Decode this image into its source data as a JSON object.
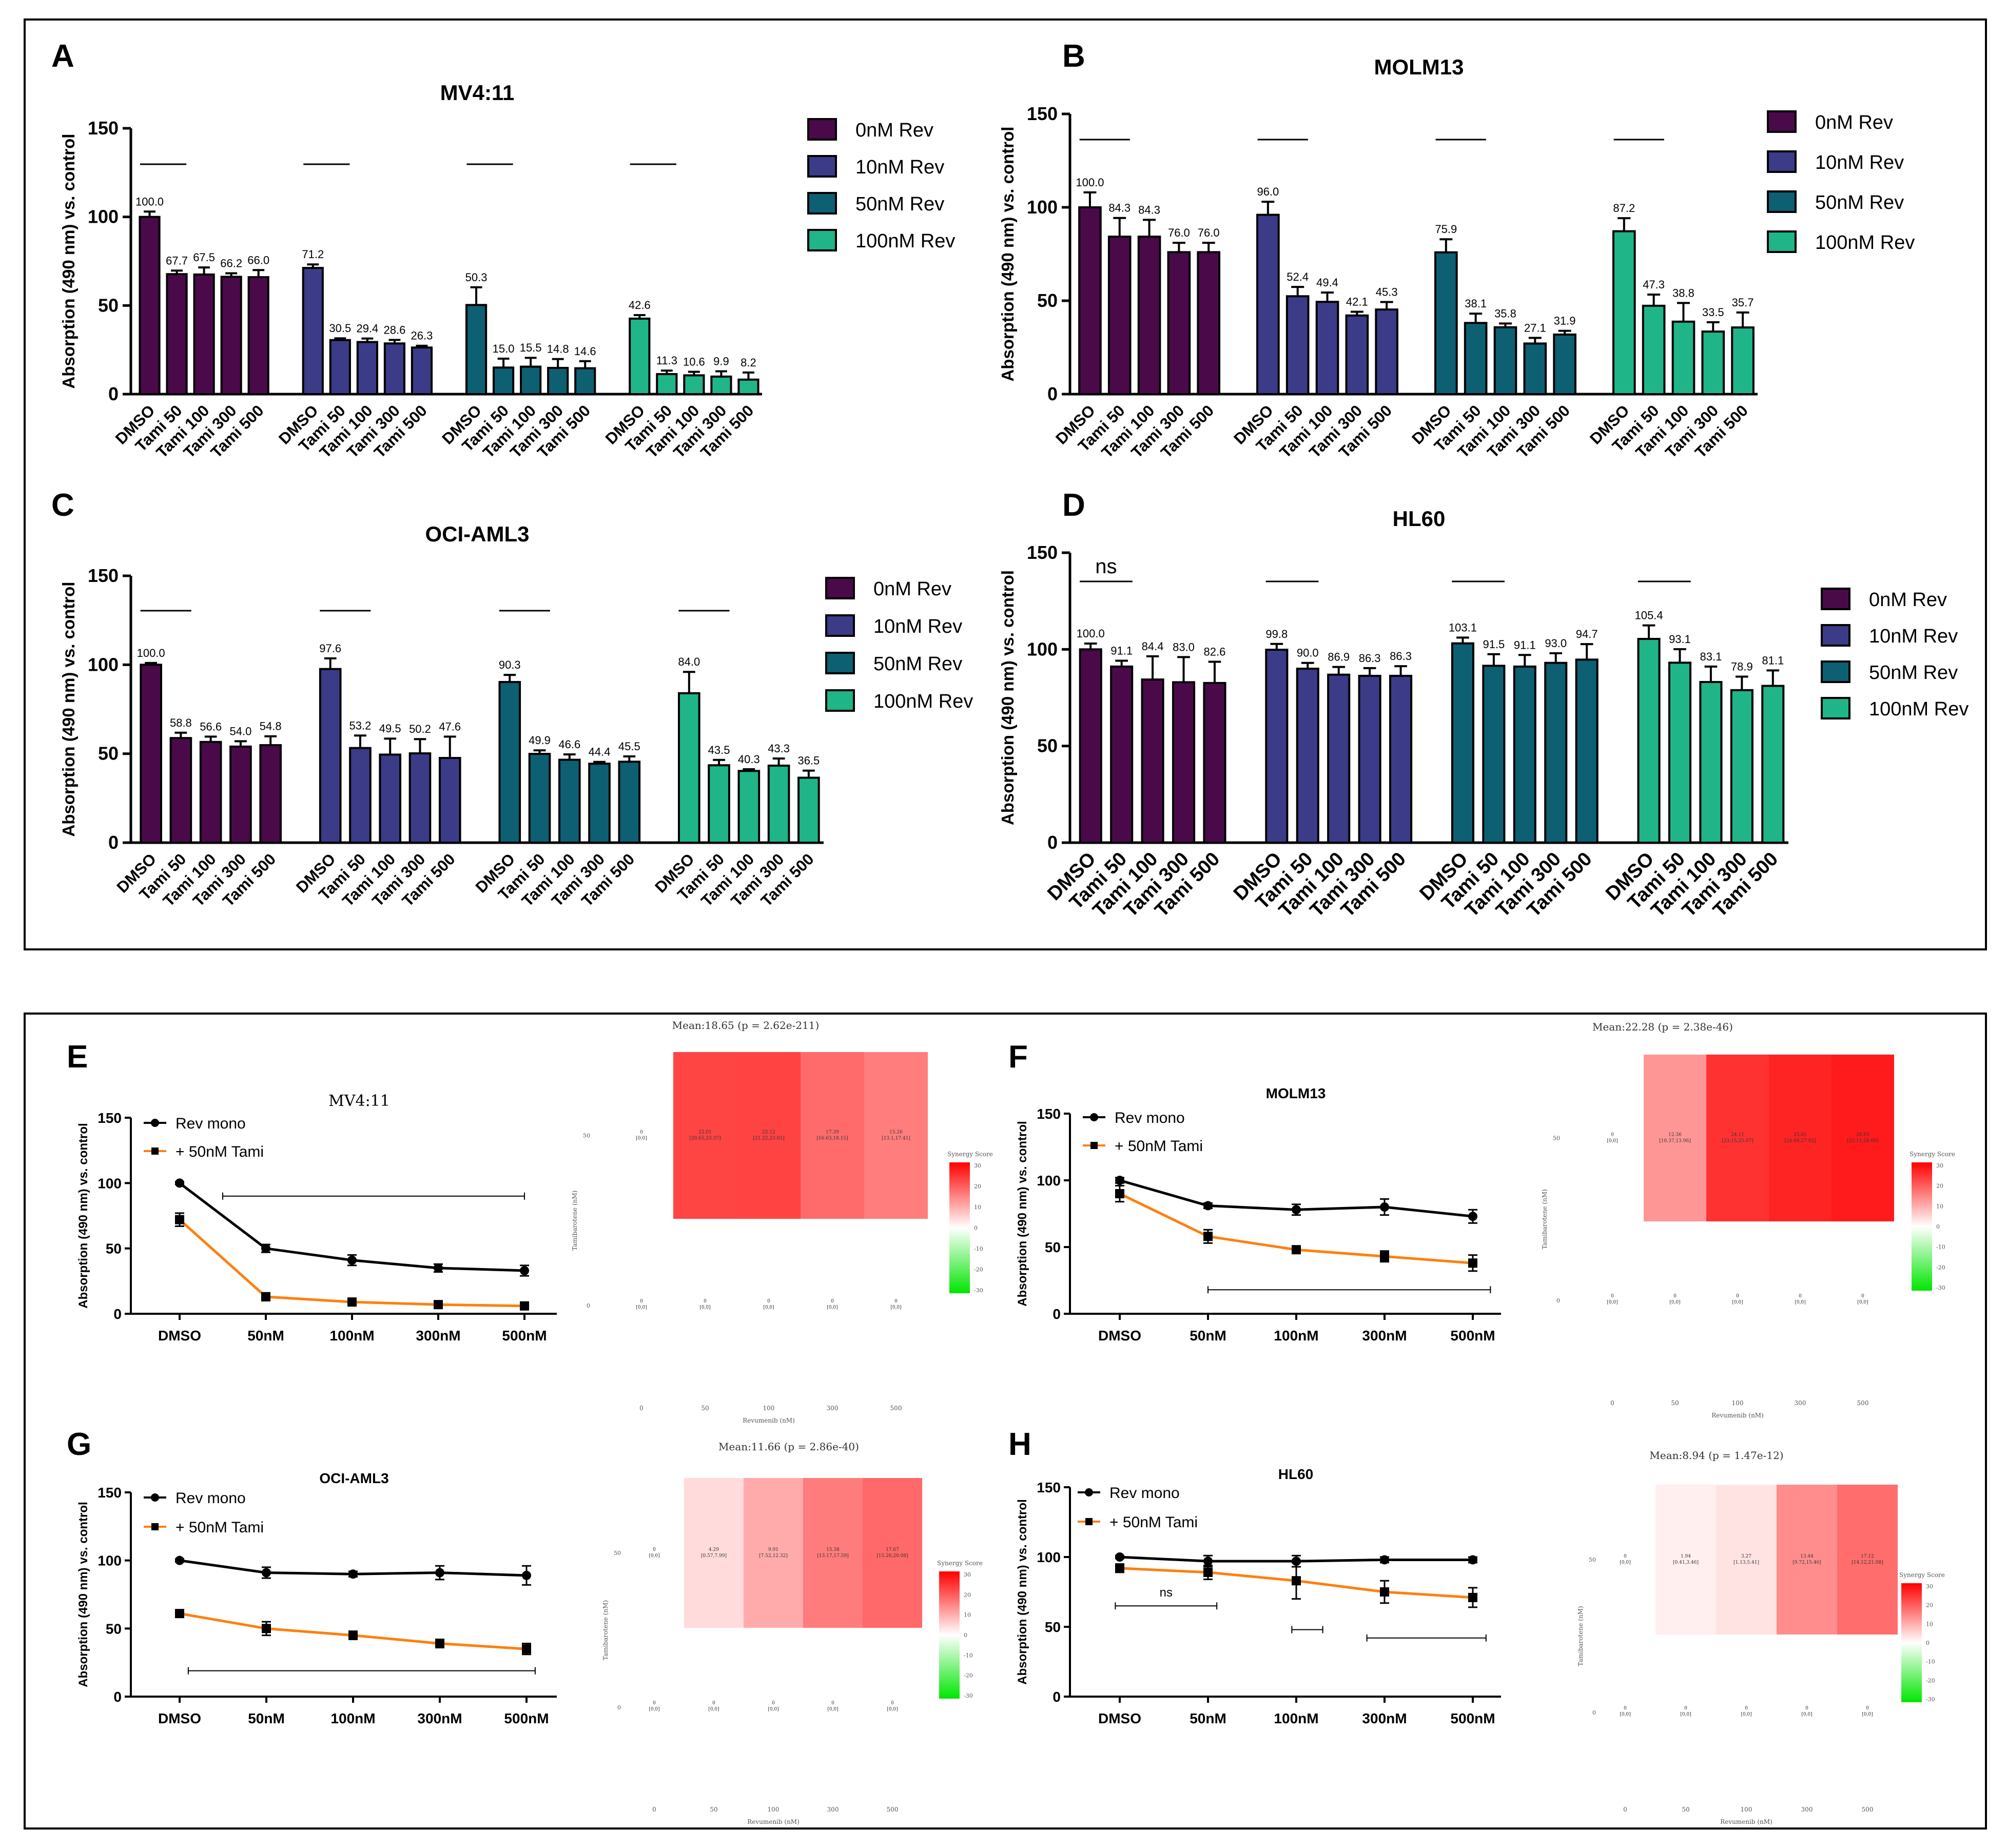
{
  "figure": {
    "panel_letters": [
      "A",
      "B",
      "C",
      "D",
      "E",
      "F",
      "G",
      "H"
    ],
    "colors": {
      "rev0": "#4a0a4a",
      "rev10": "#3b3b88",
      "rev50": "#0d5f72",
      "rev100": "#1fb589",
      "mono": "#000000",
      "tami": "#ff7f0e",
      "heat_high": "#ff0000",
      "heat_low": "#00e600"
    }
  },
  "chart_data": [
    {
      "id": "A",
      "type": "bar",
      "title": "MV4:11",
      "ylabel": "Absorption (490 nm) vs. control",
      "ylim": [
        0,
        150
      ],
      "yticks": [
        0,
        50,
        100,
        150
      ],
      "categories": [
        "DMSO",
        "Tami 50",
        "Tami 100",
        "Tami 300",
        "Tami 500"
      ],
      "legend": [
        "0nM Rev",
        "10nM Rev",
        "50nM Rev",
        "100nM Rev"
      ],
      "groups": [
        {
          "name": "0nM Rev",
          "values": [
            100.0,
            67.7,
            67.5,
            66.2,
            66.0
          ],
          "labels": [
            "100.0",
            "67.7",
            "67.5",
            "66.2",
            "66.0"
          ],
          "errors": [
            3,
            2,
            4,
            2,
            4
          ]
        },
        {
          "name": "10nM Rev",
          "values": [
            71.2,
            30.5,
            29.4,
            28.6,
            26.3
          ],
          "labels": [
            "71.2",
            "30.5",
            "29.4",
            "28.6",
            "26.3"
          ],
          "errors": [
            2,
            1,
            2,
            2,
            1
          ]
        },
        {
          "name": "50nM Rev",
          "values": [
            50.3,
            15.0,
            15.5,
            14.8,
            14.6
          ],
          "labels": [
            "50.3",
            "15.0",
            "15.5",
            "14.8",
            "14.6"
          ],
          "errors": [
            10,
            5,
            5,
            5,
            4
          ]
        },
        {
          "name": "100nM Rev",
          "values": [
            42.6,
            11.3,
            10.6,
            9.9,
            8.2
          ],
          "labels": [
            "42.6",
            "11.3",
            "10.6",
            "9.9",
            "8.2"
          ],
          "errors": [
            2,
            2,
            2,
            3,
            4
          ]
        }
      ],
      "sig_marks": [
        "",
        "",
        "",
        ""
      ]
    },
    {
      "id": "B",
      "type": "bar",
      "title": "MOLM13",
      "ylabel": "Absorption (490 nm) vs. control",
      "ylim": [
        0,
        150
      ],
      "yticks": [
        0,
        50,
        100,
        150
      ],
      "categories": [
        "DMSO",
        "Tami 50",
        "Tami 100",
        "Tami 300",
        "Tami 500"
      ],
      "legend": [
        "0nM Rev",
        "10nM Rev",
        "50nM Rev",
        "100nM Rev"
      ],
      "groups": [
        {
          "name": "0nM Rev",
          "values": [
            100.0,
            84.3,
            84.3,
            76.0,
            76.0
          ],
          "labels": [
            "100.0",
            "84.3",
            "84.3",
            "76.0",
            "76.0"
          ],
          "errors": [
            8,
            10,
            9,
            5,
            5
          ]
        },
        {
          "name": "10nM Rev",
          "values": [
            96.0,
            52.4,
            49.4,
            42.1,
            45.3
          ],
          "labels": [
            "96.0",
            "52.4",
            "49.4",
            "42.1",
            "45.3"
          ],
          "errors": [
            7,
            5,
            5,
            2,
            4
          ]
        },
        {
          "name": "50nM Rev",
          "values": [
            75.9,
            38.1,
            35.8,
            27.1,
            31.9
          ],
          "labels": [
            "75.9",
            "38.1",
            "35.8",
            "27.1",
            "31.9"
          ],
          "errors": [
            7,
            5,
            2,
            3,
            2
          ]
        },
        {
          "name": "100nM Rev",
          "values": [
            87.2,
            47.3,
            38.8,
            33.5,
            35.7
          ],
          "labels": [
            "87.2",
            "47.3",
            "38.8",
            "33.5",
            "35.7"
          ],
          "errors": [
            7,
            6,
            10,
            5,
            8
          ]
        }
      ],
      "sig_marks": [
        "",
        "",
        "",
        ""
      ]
    },
    {
      "id": "C",
      "type": "bar",
      "title": "OCI-AML3",
      "ylabel": "Absorption (490 nm) vs. control",
      "ylim": [
        0,
        150
      ],
      "yticks": [
        0,
        50,
        100,
        150
      ],
      "categories": [
        "DMSO",
        "Tami 50",
        "Tami 100",
        "Tami 300",
        "Tami 500"
      ],
      "legend": [
        "0nM Rev",
        "10nM Rev",
        "50nM Rev",
        "100nM Rev"
      ],
      "groups": [
        {
          "name": "0nM Rev",
          "values": [
            100.0,
            58.8,
            56.6,
            54.0,
            54.8
          ],
          "labels": [
            "100.0",
            "58.8",
            "56.6",
            "54.0",
            "54.8"
          ],
          "errors": [
            1,
            3,
            3,
            3,
            5
          ]
        },
        {
          "name": "10nM Rev",
          "values": [
            97.6,
            53.2,
            49.5,
            50.2,
            47.6
          ],
          "labels": [
            "97.6",
            "53.2",
            "49.5",
            "50.2",
            "47.6"
          ],
          "errors": [
            6,
            7,
            9,
            8,
            12
          ]
        },
        {
          "name": "50nM Rev",
          "values": [
            90.3,
            49.9,
            46.6,
            44.4,
            45.5
          ],
          "labels": [
            "90.3",
            "49.9",
            "46.6",
            "44.4",
            "45.5"
          ],
          "errors": [
            4,
            2,
            3,
            1,
            3
          ]
        },
        {
          "name": "100nM Rev",
          "values": [
            84.0,
            43.5,
            40.3,
            43.3,
            36.5
          ],
          "labels": [
            "84.0",
            "43.5",
            "40.3",
            "43.3",
            "36.5"
          ],
          "errors": [
            12,
            3,
            1,
            4,
            4
          ]
        }
      ],
      "sig_marks": [
        "",
        "",
        "",
        ""
      ]
    },
    {
      "id": "D",
      "type": "bar",
      "title": "HL60",
      "ylabel": "Absorption (490 nm) vs. control",
      "ylim": [
        0,
        150
      ],
      "yticks": [
        0,
        50,
        100,
        150
      ],
      "categories": [
        "DMSO",
        "Tami 50",
        "Tami 100",
        "Tami 300",
        "Tami 500"
      ],
      "legend": [
        "0nM Rev",
        "10nM Rev",
        "50nM Rev",
        "100nM Rev"
      ],
      "groups": [
        {
          "name": "0nM Rev",
          "values": [
            100.0,
            91.1,
            84.4,
            83.0,
            82.6
          ],
          "labels": [
            "100.0",
            "91.1",
            "84.4",
            "83.0",
            "82.6"
          ],
          "errors": [
            3,
            3,
            12,
            13,
            11
          ]
        },
        {
          "name": "10nM Rev",
          "values": [
            99.8,
            90.0,
            86.9,
            86.3,
            86.3
          ],
          "labels": [
            "99.8",
            "90.0",
            "86.9",
            "86.3",
            "86.3"
          ],
          "errors": [
            3,
            3,
            4,
            4,
            5
          ]
        },
        {
          "name": "50nM Rev",
          "values": [
            103.1,
            91.5,
            91.1,
            93.0,
            94.7
          ],
          "labels": [
            "103.1",
            "91.5",
            "91.1",
            "93.0",
            "94.7"
          ],
          "errors": [
            3,
            6,
            6,
            5,
            8
          ]
        },
        {
          "name": "100nM Rev",
          "values": [
            105.4,
            93.1,
            83.1,
            78.9,
            81.1
          ],
          "labels": [
            "105.4",
            "93.1",
            "83.1",
            "78.9",
            "81.1"
          ],
          "errors": [
            7,
            7,
            8,
            7,
            8
          ]
        }
      ],
      "sig_marks": [
        "ns",
        "",
        "",
        ""
      ]
    },
    {
      "id": "E",
      "type": "line",
      "title": "MV4:11",
      "ylabel": "Absorption (490 nm) vs. control",
      "ylim": [
        0,
        150
      ],
      "yticks": [
        0,
        50,
        100,
        150
      ],
      "x": [
        "DMSO",
        "50nM",
        "100nM",
        "300nM",
        "500nM"
      ],
      "series": [
        {
          "name": "Rev mono",
          "values": [
            100,
            50,
            41,
            35,
            33
          ],
          "errors": [
            1,
            3,
            4,
            3,
            4
          ]
        },
        {
          "name": "+ 50nM Tami",
          "values": [
            72,
            13,
            9,
            7,
            6
          ],
          "errors": [
            5,
            3,
            1,
            1,
            1
          ]
        }
      ],
      "brackets": [
        {
          "from": 0.5,
          "to": 4.0,
          "level": 90,
          "label": ""
        }
      ]
    },
    {
      "id": "F",
      "type": "line",
      "title": "MOLM13",
      "ylabel": "Absorption (490 nm) vs. control",
      "ylim": [
        0,
        150
      ],
      "yticks": [
        0,
        50,
        100,
        150
      ],
      "x": [
        "DMSO",
        "50nM",
        "100nM",
        "300nM",
        "500nM"
      ],
      "series": [
        {
          "name": "Rev mono",
          "values": [
            100,
            81,
            78,
            80,
            73
          ],
          "errors": [
            2,
            2,
            4,
            6,
            5
          ]
        },
        {
          "name": "+ 50nM Tami",
          "values": [
            90,
            58,
            48,
            43,
            38
          ],
          "errors": [
            6,
            5,
            2,
            4,
            6
          ]
        }
      ],
      "brackets": [
        {
          "from": 1.0,
          "to": 4.2,
          "level": 18,
          "label": ""
        }
      ]
    },
    {
      "id": "G",
      "type": "line",
      "title": "OCI-AML3",
      "ylabel": "Absorption (490 nm) vs. control",
      "ylim": [
        0,
        150
      ],
      "yticks": [
        0,
        50,
        100,
        150
      ],
      "x": [
        "DMSO",
        "50nM",
        "100nM",
        "300nM",
        "500nM"
      ],
      "series": [
        {
          "name": "Rev mono",
          "values": [
            100,
            91,
            90,
            91,
            89
          ],
          "errors": [
            1,
            4,
            2,
            5,
            7
          ]
        },
        {
          "name": "+ 50nM Tami",
          "values": [
            61,
            50,
            45,
            39,
            35
          ],
          "errors": [
            2,
            5,
            3,
            3,
            4
          ]
        }
      ],
      "brackets": [
        {
          "from": 0.1,
          "to": 4.1,
          "level": 19,
          "label": ""
        }
      ]
    },
    {
      "id": "H",
      "type": "line",
      "title": "HL60",
      "ylabel": "Absorption (490 nm) vs. control",
      "ylim": [
        0,
        150
      ],
      "yticks": [
        0,
        50,
        100,
        150
      ],
      "x": [
        "DMSO",
        "50nM",
        "100nM",
        "300nM",
        "500nM"
      ],
      "series": [
        {
          "name": "Rev mono",
          "values": [
            100,
            97,
            97,
            98,
            98
          ],
          "errors": [
            1,
            4,
            4,
            2,
            2
          ]
        },
        {
          "name": "+ 50nM Tami",
          "values": [
            92,
            89,
            83,
            75,
            71
          ],
          "errors": [
            3,
            5,
            13,
            8,
            7
          ]
        }
      ],
      "brackets": [
        {
          "from": -0.05,
          "to": 1.1,
          "level": 65,
          "label": "ns"
        },
        {
          "from": 1.95,
          "to": 2.3,
          "level": 48,
          "label": ""
        },
        {
          "from": 2.8,
          "to": 4.15,
          "level": 42,
          "label": ""
        }
      ]
    },
    {
      "id": "E-heatmap",
      "type": "heatmap",
      "title": "Mean:18.65 (p = 2.62e-211)",
      "ylabel": "Tamibarotene (nM)",
      "xlabel": "Revumenib (nM)",
      "x": [
        "0",
        "50",
        "100",
        "300",
        "500"
      ],
      "y": [
        "50",
        "0"
      ],
      "cells_50": [
        {
          "score": "0",
          "ci": "[0,0]"
        },
        {
          "score": "22.01",
          "ci": "[20.65,23.37]"
        },
        {
          "score": "22.12",
          "ci": "[21.22,23.01]"
        },
        {
          "score": "17.39",
          "ci": "[16.63,18.15]"
        },
        {
          "score": "15.26",
          "ci": "[13.1,17.41]"
        }
      ],
      "values_50": [
        0,
        22.01,
        22.12,
        17.39,
        15.26
      ],
      "cells_0": [
        "[0,0]",
        "[0,0]",
        "[0,0]",
        "[0,0]",
        "[0,0]"
      ],
      "legend_title": "Synergy Score",
      "legend_ticks": [
        "30",
        "20",
        "10",
        "0",
        "-10",
        "-20",
        "-30"
      ]
    },
    {
      "id": "F-heatmap",
      "type": "heatmap",
      "title": "Mean:22.28 (p = 2.38e-46)",
      "ylabel": "Tamibarotene (nM)",
      "xlabel": "Revumenib (nM)",
      "x": [
        "0",
        "50",
        "100",
        "300",
        "500"
      ],
      "y": [
        "50",
        "0"
      ],
      "cells_50": [
        {
          "score": "0",
          "ci": "[0,0]"
        },
        {
          "score": "12.36",
          "ci": "[10.37,13.96]"
        },
        {
          "score": "24.11",
          "ci": "[23.15,25.07]"
        },
        {
          "score": "25.81",
          "ci": "[24.60,27.02]"
        },
        {
          "score": "26.85",
          "ci": "[25.11,28.60]"
        }
      ],
      "values_50": [
        0,
        12.36,
        24.11,
        25.81,
        26.85
      ],
      "cells_0": [
        "[0,0]",
        "[0,0]",
        "[0,0]",
        "[0,0]",
        "[0,0]"
      ],
      "legend_title": "Synergy Score",
      "legend_ticks": [
        "30",
        "20",
        "10",
        "0",
        "-10",
        "-20",
        "-30"
      ]
    },
    {
      "id": "G-heatmap",
      "type": "heatmap",
      "title": "Mean:11.66 (p = 2.86e-40)",
      "ylabel": "Tamibarotene (nM)",
      "xlabel": "Revumenib (nM)",
      "x": [
        "0",
        "50",
        "100",
        "300",
        "500"
      ],
      "y": [
        "50",
        "0"
      ],
      "cells_50": [
        {
          "score": "0",
          "ci": "[0,0]"
        },
        {
          "score": "4.29",
          "ci": "[0.57,7.99]"
        },
        {
          "score": "9.91",
          "ci": "[7.52,12.32]"
        },
        {
          "score": "15.38",
          "ci": "[13.17,17.59]"
        },
        {
          "score": "17.67",
          "ci": "[15.26,20.08]"
        }
      ],
      "values_50": [
        0,
        4.29,
        9.91,
        15.38,
        17.67
      ],
      "cells_0": [
        "[0,0]",
        "[0,0]",
        "[0,0]",
        "[0,0]",
        "[0,0]"
      ],
      "legend_title": "Synergy Score",
      "legend_ticks": [
        "30",
        "20",
        "10",
        "0",
        "-10",
        "-20",
        "-30"
      ]
    },
    {
      "id": "H-heatmap",
      "type": "heatmap",
      "title": "Mean:8.94 (p = 1.47e-12)",
      "ylabel": "Tamibarotene (nM)",
      "xlabel": "Revumenib (nM)",
      "x": [
        "0",
        "50",
        "100",
        "300",
        "500"
      ],
      "y": [
        "50",
        "0"
      ],
      "cells_50": [
        {
          "score": "0",
          "ci": "[0,0]"
        },
        {
          "score": "1.94",
          "ci": "[0.41,3.46]"
        },
        {
          "score": "3.27",
          "ci": "[1.13,5.41]"
        },
        {
          "score": "13.44",
          "ci": "[9.72,15.46]"
        },
        {
          "score": "17.12",
          "ci": "[14.12,21.08]"
        }
      ],
      "values_50": [
        0,
        1.94,
        3.27,
        13.44,
        17.12
      ],
      "cells_0": [
        "[0,0]",
        "[0,0]",
        "[0,0]",
        "[0,0]",
        "[0,0]"
      ],
      "legend_title": "Synergy Score",
      "legend_ticks": [
        "30",
        "20",
        "10",
        "0",
        "-10",
        "-20",
        "-30"
      ]
    }
  ]
}
